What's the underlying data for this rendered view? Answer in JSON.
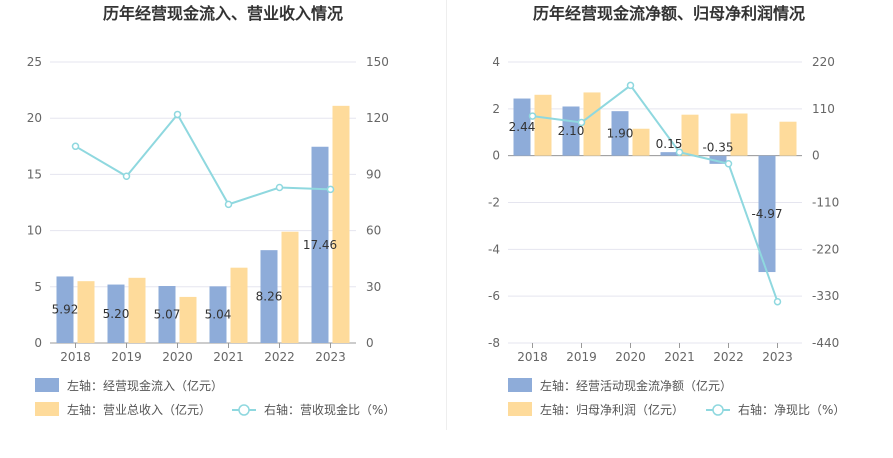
{
  "colors": {
    "bar_primary": "#8eacd9",
    "bar_secondary": "#fedb9b",
    "line": "#8fd8df",
    "grid": "#e5e5ef",
    "axis": "#999999"
  },
  "chart_data": [
    {
      "type": "bar",
      "title": "历年经营现金流入、营业收入情况",
      "categories": [
        "2018",
        "2019",
        "2020",
        "2021",
        "2022",
        "2023"
      ],
      "left_ticks": [
        "0",
        "5",
        "10",
        "15",
        "20",
        "25"
      ],
      "right_ticks": [
        "0",
        "30",
        "60",
        "90",
        "120",
        "150"
      ],
      "ylim_left": [
        0,
        25
      ],
      "ylim_right": [
        0,
        150
      ],
      "series": [
        {
          "name": "左轴：经营现金流入（亿元）",
          "axis": "left",
          "kind": "bar",
          "values": [
            5.92,
            5.2,
            5.07,
            5.04,
            8.26,
            17.46
          ],
          "labels": [
            "5.92",
            "5.20",
            "5.07",
            "5.04",
            "8.26",
            "17.46"
          ]
        },
        {
          "name": "左轴：营业总收入（亿元）",
          "axis": "left",
          "kind": "bar",
          "values": [
            5.5,
            5.8,
            4.1,
            6.7,
            9.9,
            21.1
          ]
        },
        {
          "name": "右轴：营收现金比（%）",
          "axis": "right",
          "kind": "line",
          "values": [
            105,
            89,
            122,
            74,
            83,
            82
          ]
        }
      ]
    },
    {
      "type": "bar",
      "title": "历年经营现金流净额、归母净利润情况",
      "categories": [
        "2018",
        "2019",
        "2020",
        "2021",
        "2022",
        "2023"
      ],
      "left_ticks": [
        "-8",
        "-6",
        "-4",
        "-2",
        "0",
        "2",
        "4"
      ],
      "right_ticks": [
        "-440",
        "-330",
        "-220",
        "-110",
        "0",
        "110",
        "220"
      ],
      "ylim_left": [
        -8,
        4
      ],
      "ylim_right": [
        -440,
        220
      ],
      "series": [
        {
          "name": "左轴：经营活动现金流净额（亿元）",
          "axis": "left",
          "kind": "bar",
          "values": [
            2.44,
            2.1,
            1.9,
            0.15,
            -0.35,
            -4.97
          ],
          "labels": [
            "2.44",
            "2.10",
            "1.90",
            "0.15",
            "-0.35",
            "-4.97"
          ]
        },
        {
          "name": "左轴：归母净利润（亿元）",
          "axis": "left",
          "kind": "bar",
          "values": [
            2.6,
            2.7,
            1.15,
            1.75,
            1.8,
            1.45
          ]
        },
        {
          "name": "右轴：净现比（%）",
          "axis": "right",
          "kind": "line",
          "values": [
            93,
            78,
            165,
            8,
            -19,
            -343
          ]
        }
      ]
    }
  ]
}
